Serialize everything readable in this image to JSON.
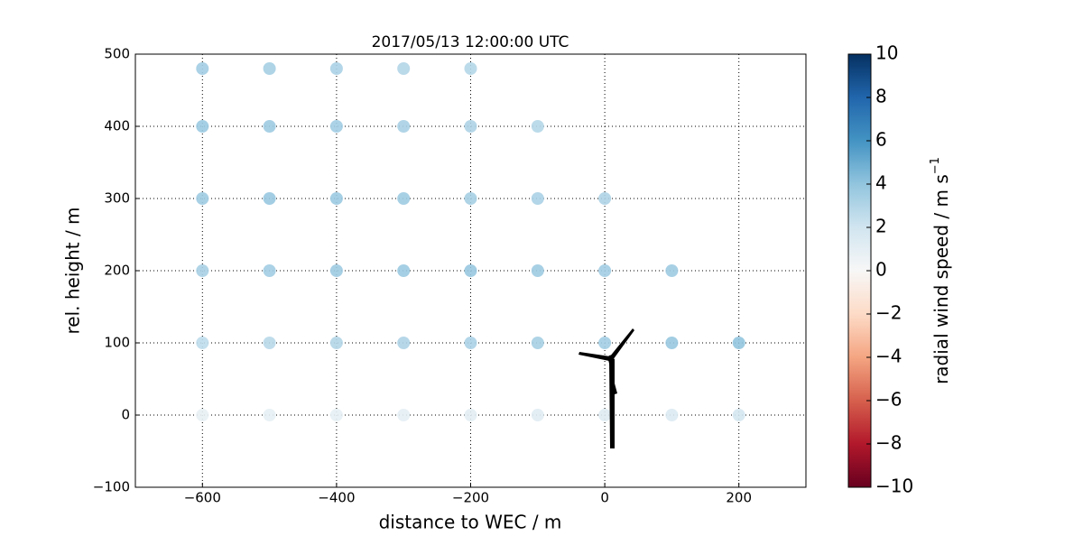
{
  "chart_data": {
    "type": "scatter",
    "title": "2017/05/13 12:00:00 UTC",
    "x_label": "distance to WEC / m",
    "y_label": "rel. height / m",
    "x": [
      -600,
      -600,
      -600,
      -600,
      -600,
      -600,
      -500,
      -500,
      -500,
      -500,
      -500,
      -500,
      -400,
      -400,
      -400,
      -400,
      -400,
      -400,
      -300,
      -300,
      -300,
      -300,
      -300,
      -300,
      -200,
      -200,
      -200,
      -200,
      -200,
      -200,
      -100,
      -100,
      -100,
      -100,
      -100,
      0,
      0,
      0,
      0,
      100,
      100,
      100,
      200,
      200
    ],
    "y": [
      0,
      100,
      200,
      300,
      400,
      480,
      0,
      100,
      200,
      300,
      400,
      480,
      0,
      100,
      200,
      300,
      400,
      480,
      0,
      100,
      200,
      300,
      400,
      480,
      0,
      100,
      200,
      300,
      400,
      480,
      0,
      100,
      200,
      300,
      400,
      0,
      100,
      200,
      300,
      0,
      100,
      200,
      0,
      100
    ],
    "values": [
      0.8,
      2.6,
      3.3,
      3.6,
      3.7,
      3.5,
      0.9,
      2.8,
      3.5,
      3.8,
      3.6,
      3.4,
      0.9,
      3.0,
      3.6,
      3.7,
      3.5,
      3.2,
      1.0,
      3.1,
      3.7,
      3.6,
      3.3,
      3.0,
      1.1,
      3.2,
      3.8,
      3.4,
      3.1,
      2.9,
      1.2,
      3.4,
      3.6,
      3.2,
      2.9,
      1.3,
      3.5,
      3.5,
      3.1,
      1.5,
      3.8,
      3.6,
      1.8,
      4.0
    ],
    "colormap": "RdBu",
    "xlim": [
      -700,
      300
    ],
    "xticks": [
      {
        "value": -600,
        "label": "−600"
      },
      {
        "value": -400,
        "label": "−400"
      },
      {
        "value": -200,
        "label": "−200"
      },
      0,
      200
    ],
    "ylim": [
      -100,
      500
    ],
    "yticks": [
      {
        "value": -100,
        "label": "−100"
      },
      0,
      100,
      200,
      300,
      400,
      500
    ],
    "grid": true,
    "colorbar_label": "radial wind speed / m s",
    "colorbar_label_exponent": "−1",
    "clim": [
      -10,
      10
    ],
    "cticks": [
      {
        "value": -10,
        "label": "−10"
      },
      {
        "value": -8,
        "label": "−8"
      },
      {
        "value": -6,
        "label": "−6"
      },
      {
        "value": -4,
        "label": "−4"
      },
      {
        "value": -2,
        "label": "−2"
      },
      0,
      2,
      4,
      6,
      8,
      10
    ]
  }
}
